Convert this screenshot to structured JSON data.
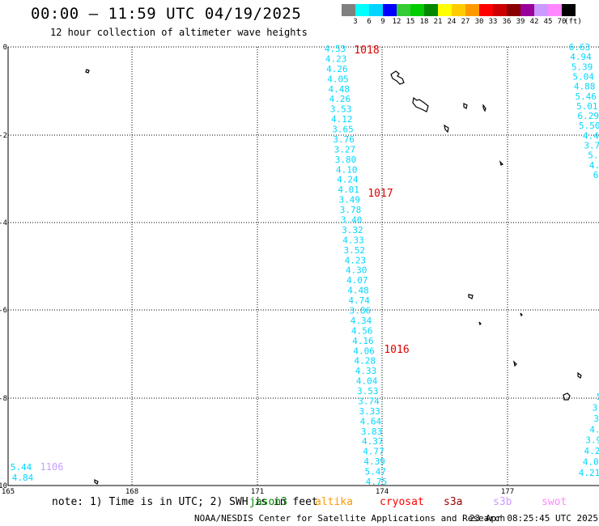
{
  "title": "00:00 – 11:59 UTC 04/19/2025",
  "subtitle": "12 hour collection of altimeter wave heights",
  "legend": {
    "colors": [
      "#808080",
      "#00ffff",
      "#00d4ff",
      "#0000ff",
      "#33cc33",
      "#00cc00",
      "#008800",
      "#ffff00",
      "#ffcc00",
      "#ff9900",
      "#ff0000",
      "#cc0000",
      "#880000",
      "#990099",
      "#cc99ff",
      "#ff88ff",
      "#000000"
    ],
    "ticks": [
      "3",
      "6",
      "9",
      "12",
      "15",
      "18",
      "21",
      "24",
      "27",
      "30",
      "33",
      "36",
      "39",
      "42",
      "45",
      "70"
    ],
    "unit": "(ft)"
  },
  "axes": {
    "y_ticks": [
      "0",
      "-2",
      "-4",
      "-6",
      "-8",
      "-10"
    ],
    "x_ticks": [
      "165",
      "168",
      "171",
      "174",
      "177"
    ]
  },
  "pressure_labels": [
    "1018",
    "1017",
    "1016"
  ],
  "tracks": {
    "main": [
      "4.53",
      "4.23",
      "4.26",
      "4.05",
      "4.48",
      "4.26",
      "3.53",
      "4.12",
      "3.65",
      "3.76",
      "3.27",
      "3.80",
      "4.10",
      "4.24",
      "4.01",
      "3.49",
      "3.78",
      "3.40",
      "3.32",
      "4.33",
      "3.52",
      "4.23",
      "4.30",
      "4.07",
      "4.48",
      "4.74",
      "3.86",
      "4.34",
      "4.56",
      "4.16",
      "4.06",
      "4.28",
      "4.33",
      "4.04",
      "3.53",
      "3.74",
      "3.33",
      "4.64",
      "3.83",
      "4.37",
      "4.77",
      "4.39",
      "5.47",
      "4.75"
    ],
    "right_top": [
      "6.63",
      "4.94",
      "5.39",
      "5.04",
      "4.88",
      "5.46",
      "5.01",
      "6.29",
      "5.50",
      "4.4",
      "3.7",
      "5.",
      "4.",
      "6"
    ],
    "right_bottom": [
      "5",
      "3.",
      "3",
      "4.",
      "3.9",
      "4.2",
      "4.0",
      "4.21"
    ],
    "left": [
      "5.44",
      "4.84"
    ],
    "left_label": "1106"
  },
  "note": "note: 1) Time is in UTC; 2) SWH is in feet",
  "satellites": [
    {
      "name": "jason3",
      "color": "#008800"
    },
    {
      "name": "altika",
      "color": "#ff9900"
    },
    {
      "name": "cryosat",
      "color": "#ff0000"
    },
    {
      "name": "s3a",
      "color": "#990000"
    },
    {
      "name": "s3b",
      "color": "#cc99ff"
    },
    {
      "name": "swot",
      "color": "#ff88ff"
    }
  ],
  "footer_left": "NOAA/NESDIS Center for Satellite Applications and Research",
  "footer_right": "23 Apr 08:25:45 UTC 2025"
}
